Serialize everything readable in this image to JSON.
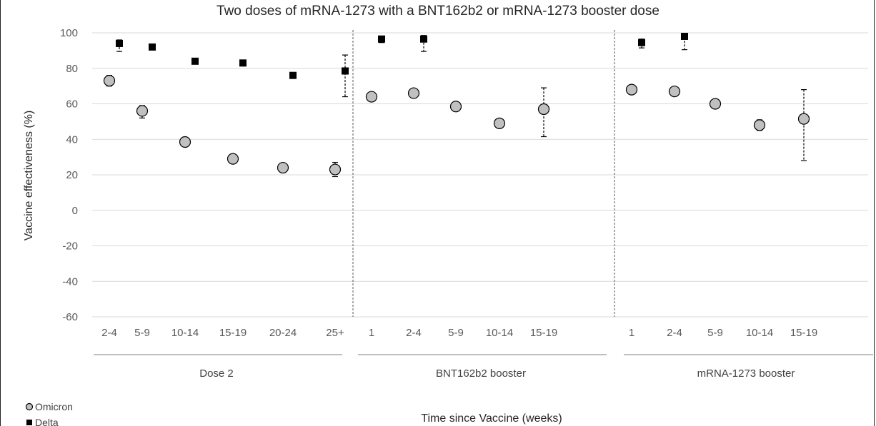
{
  "chart_data": {
    "type": "scatter",
    "title": "Two doses of mRNA-1273 with a BNT162b2 or mRNA-1273 booster dose",
    "xlabel": "Time since Vaccine (weeks)",
    "ylabel": "Vaccine effectiveness (%)",
    "ylim": [
      -60,
      100
    ],
    "yticks": [
      100,
      80,
      60,
      40,
      20,
      0,
      -20,
      -40,
      -60
    ],
    "grid": true,
    "legend_position": "bottom-left",
    "colors": {
      "omicron_fill": "#c0c0c0",
      "delta_fill": "#000000",
      "grid": "#d9d9d9",
      "separator": "#595959"
    },
    "groups": [
      {
        "name": "Dose 2",
        "categories": [
          "2-4",
          "5-9",
          "10-14",
          "15-19",
          "20-24",
          "25+"
        ]
      },
      {
        "name": "BNT162b2 booster",
        "categories": [
          "1",
          "2-4",
          "5-9",
          "10-14",
          "15-19"
        ]
      },
      {
        "name": "mRNA-1273 booster",
        "categories": [
          "1",
          "2-4",
          "5-9",
          "10-14",
          "15-19"
        ]
      }
    ],
    "series": [
      {
        "name": "Omicron",
        "marker": "circle",
        "points": [
          {
            "group": 0,
            "category": 0,
            "value": 73,
            "low": 70,
            "high": 76
          },
          {
            "group": 0,
            "category": 1,
            "value": 56,
            "low": 52,
            "high": 59
          },
          {
            "group": 0,
            "category": 2,
            "value": 38.5,
            "low": 37,
            "high": 40
          },
          {
            "group": 0,
            "category": 3,
            "value": 29,
            "low": 28,
            "high": 30
          },
          {
            "group": 0,
            "category": 4,
            "value": 24,
            "low": 23,
            "high": 25
          },
          {
            "group": 0,
            "category": 5,
            "value": 23,
            "low": 19,
            "high": 27
          },
          {
            "group": 1,
            "category": 0,
            "value": 64,
            "low": 63,
            "high": 65
          },
          {
            "group": 1,
            "category": 1,
            "value": 66,
            "low": 65,
            "high": 67
          },
          {
            "group": 1,
            "category": 2,
            "value": 58.5,
            "low": 57,
            "high": 60
          },
          {
            "group": 1,
            "category": 3,
            "value": 49,
            "low": 47,
            "high": 51
          },
          {
            "group": 1,
            "category": 4,
            "value": 57,
            "low": 41.5,
            "high": 69
          },
          {
            "group": 2,
            "category": 0,
            "value": 68,
            "low": 67,
            "high": 69
          },
          {
            "group": 2,
            "category": 1,
            "value": 67,
            "low": 66,
            "high": 68
          },
          {
            "group": 2,
            "category": 2,
            "value": 60,
            "low": 59,
            "high": 61
          },
          {
            "group": 2,
            "category": 3,
            "value": 48,
            "low": 45,
            "high": 51
          },
          {
            "group": 2,
            "category": 4,
            "value": 51.5,
            "low": 28,
            "high": 68
          }
        ]
      },
      {
        "name": "Delta",
        "marker": "square",
        "points": [
          {
            "group": 0,
            "category": 0,
            "value": 94,
            "low": 89.5,
            "high": 96
          },
          {
            "group": 0,
            "category": 1,
            "value": 92,
            "low": 91,
            "high": 93
          },
          {
            "group": 0,
            "category": 2,
            "value": 84,
            "low": 83,
            "high": 85
          },
          {
            "group": 0,
            "category": 3,
            "value": 83,
            "low": 82,
            "high": 84
          },
          {
            "group": 0,
            "category": 4,
            "value": 76,
            "low": 75,
            "high": 77
          },
          {
            "group": 0,
            "category": 5,
            "value": 78.5,
            "low": 64,
            "high": 87.5
          },
          {
            "group": 1,
            "category": 0,
            "value": 96.5,
            "low": 94.5,
            "high": 97.5
          },
          {
            "group": 1,
            "category": 1,
            "value": 96.5,
            "low": 89.5,
            "high": 98.5
          },
          {
            "group": 2,
            "category": 0,
            "value": 94.5,
            "low": 91.5,
            "high": 96.5
          },
          {
            "group": 2,
            "category": 1,
            "value": 98,
            "low": 90.5,
            "high": 99.5
          }
        ]
      }
    ]
  }
}
